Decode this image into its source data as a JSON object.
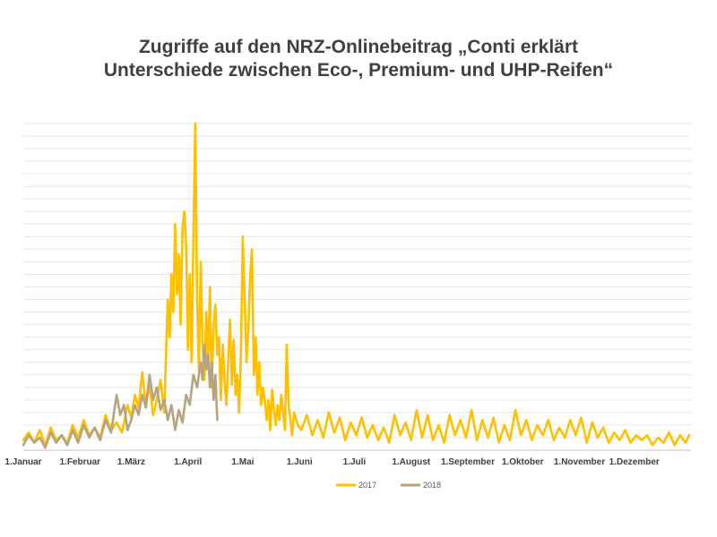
{
  "chart_data": {
    "type": "line",
    "title_line1": "Zugriffe auf den NRZ-Onlinebeitrag „Conti erklärt",
    "title_line2": "Unterschiede zwischen Eco-, Premium- und UHP-Reifen“",
    "xlabel": "",
    "ylabel": "",
    "ylim": [
      0,
      130
    ],
    "grid": true,
    "legend_position": "bottom-center",
    "months": [
      "1.Januar",
      "1.Februar",
      "1.März",
      "1.April",
      "1.Mai",
      "1.Juni",
      "1.Juli",
      "1.August",
      "1.September",
      "1.Oktober",
      "1.November",
      "1.Dezember"
    ],
    "month_start_days": [
      0,
      31,
      59,
      90,
      120,
      151,
      181,
      212,
      243,
      273,
      304,
      334
    ],
    "days_in_year": 365,
    "series": [
      {
        "name": "2017",
        "color": "#FFC000",
        "points": [
          [
            0,
            4
          ],
          [
            3,
            7
          ],
          [
            6,
            3
          ],
          [
            9,
            8
          ],
          [
            12,
            2
          ],
          [
            15,
            9
          ],
          [
            18,
            4
          ],
          [
            21,
            6
          ],
          [
            24,
            3
          ],
          [
            27,
            10
          ],
          [
            30,
            5
          ],
          [
            33,
            12
          ],
          [
            36,
            6
          ],
          [
            39,
            9
          ],
          [
            42,
            5
          ],
          [
            45,
            14
          ],
          [
            48,
            8
          ],
          [
            51,
            11
          ],
          [
            54,
            7
          ],
          [
            57,
            18
          ],
          [
            59,
            13
          ],
          [
            61,
            22
          ],
          [
            63,
            17
          ],
          [
            65,
            31
          ],
          [
            67,
            18
          ],
          [
            69,
            26
          ],
          [
            71,
            14
          ],
          [
            73,
            20
          ],
          [
            75,
            28
          ],
          [
            77,
            15
          ],
          [
            79,
            60
          ],
          [
            80,
            45
          ],
          [
            81,
            70
          ],
          [
            82,
            55
          ],
          [
            83,
            90
          ],
          [
            84,
            62
          ],
          [
            85,
            78
          ],
          [
            86,
            50
          ],
          [
            87,
            88
          ],
          [
            88,
            95
          ],
          [
            89,
            82
          ],
          [
            90,
            40
          ],
          [
            91,
            70
          ],
          [
            92,
            35
          ],
          [
            93,
            85
          ],
          [
            94,
            130
          ],
          [
            95,
            60
          ],
          [
            96,
            32
          ],
          [
            97,
            75
          ],
          [
            98,
            42
          ],
          [
            99,
            28
          ],
          [
            100,
            55
          ],
          [
            101,
            33
          ],
          [
            102,
            65
          ],
          [
            103,
            25
          ],
          [
            104,
            50
          ],
          [
            105,
            58
          ],
          [
            106,
            38
          ],
          [
            107,
            45
          ],
          [
            108,
            20
          ],
          [
            109,
            42
          ],
          [
            110,
            28
          ],
          [
            111,
            18
          ],
          [
            112,
            35
          ],
          [
            113,
            52
          ],
          [
            114,
            26
          ],
          [
            115,
            44
          ],
          [
            116,
            22
          ],
          [
            117,
            30
          ],
          [
            118,
            15
          ],
          [
            119,
            40
          ],
          [
            120,
            85
          ],
          [
            121,
            60
          ],
          [
            122,
            35
          ],
          [
            123,
            48
          ],
          [
            124,
            70
          ],
          [
            125,
            80
          ],
          [
            126,
            30
          ],
          [
            127,
            45
          ],
          [
            128,
            22
          ],
          [
            129,
            35
          ],
          [
            130,
            18
          ],
          [
            131,
            25
          ],
          [
            132,
            20
          ],
          [
            133,
            12
          ],
          [
            134,
            20
          ],
          [
            135,
            8
          ],
          [
            136,
            24
          ],
          [
            137,
            16
          ],
          [
            138,
            10
          ],
          [
            139,
            18
          ],
          [
            140,
            12
          ],
          [
            141,
            22
          ],
          [
            142,
            15
          ],
          [
            143,
            8
          ],
          [
            144,
            42
          ],
          [
            145,
            18
          ],
          [
            146,
            12
          ],
          [
            147,
            6
          ],
          [
            148,
            15
          ],
          [
            150,
            10
          ],
          [
            152,
            8
          ],
          [
            155,
            14
          ],
          [
            158,
            6
          ],
          [
            161,
            12
          ],
          [
            164,
            5
          ],
          [
            167,
            15
          ],
          [
            170,
            7
          ],
          [
            173,
            13
          ],
          [
            176,
            4
          ],
          [
            179,
            11
          ],
          [
            182,
            6
          ],
          [
            185,
            13
          ],
          [
            188,
            5
          ],
          [
            191,
            10
          ],
          [
            194,
            4
          ],
          [
            197,
            9
          ],
          [
            200,
            3
          ],
          [
            203,
            14
          ],
          [
            206,
            6
          ],
          [
            209,
            11
          ],
          [
            212,
            4
          ],
          [
            215,
            16
          ],
          [
            218,
            5
          ],
          [
            221,
            14
          ],
          [
            224,
            4
          ],
          [
            227,
            10
          ],
          [
            230,
            3
          ],
          [
            233,
            14
          ],
          [
            236,
            6
          ],
          [
            239,
            12
          ],
          [
            242,
            5
          ],
          [
            245,
            16
          ],
          [
            248,
            4
          ],
          [
            251,
            12
          ],
          [
            254,
            5
          ],
          [
            257,
            13
          ],
          [
            260,
            3
          ],
          [
            263,
            10
          ],
          [
            266,
            4
          ],
          [
            269,
            16
          ],
          [
            272,
            6
          ],
          [
            275,
            12
          ],
          [
            278,
            4
          ],
          [
            281,
            10
          ],
          [
            284,
            6
          ],
          [
            287,
            12
          ],
          [
            290,
            4
          ],
          [
            293,
            9
          ],
          [
            296,
            5
          ],
          [
            299,
            12
          ],
          [
            302,
            6
          ],
          [
            305,
            13
          ],
          [
            308,
            3
          ],
          [
            311,
            11
          ],
          [
            314,
            5
          ],
          [
            317,
            9
          ],
          [
            320,
            3
          ],
          [
            323,
            7
          ],
          [
            326,
            4
          ],
          [
            329,
            8
          ],
          [
            332,
            3
          ],
          [
            335,
            6
          ],
          [
            338,
            4
          ],
          [
            341,
            6
          ],
          [
            344,
            2
          ],
          [
            347,
            5
          ],
          [
            350,
            3
          ],
          [
            353,
            7
          ],
          [
            356,
            2
          ],
          [
            359,
            6
          ],
          [
            362,
            3
          ],
          [
            364,
            6
          ]
        ]
      },
      {
        "name": "2018",
        "color": "#B5A47F",
        "points": [
          [
            0,
            2
          ],
          [
            3,
            6
          ],
          [
            6,
            3
          ],
          [
            9,
            5
          ],
          [
            12,
            1
          ],
          [
            15,
            7
          ],
          [
            18,
            3
          ],
          [
            21,
            6
          ],
          [
            24,
            2
          ],
          [
            27,
            8
          ],
          [
            30,
            3
          ],
          [
            33,
            10
          ],
          [
            36,
            5
          ],
          [
            39,
            9
          ],
          [
            42,
            4
          ],
          [
            45,
            12
          ],
          [
            48,
            7
          ],
          [
            51,
            22
          ],
          [
            53,
            14
          ],
          [
            55,
            18
          ],
          [
            57,
            8
          ],
          [
            59,
            12
          ],
          [
            61,
            18
          ],
          [
            63,
            14
          ],
          [
            65,
            22
          ],
          [
            67,
            17
          ],
          [
            69,
            30
          ],
          [
            71,
            20
          ],
          [
            73,
            25
          ],
          [
            75,
            16
          ],
          [
            77,
            20
          ],
          [
            79,
            12
          ],
          [
            81,
            18
          ],
          [
            83,
            8
          ],
          [
            85,
            16
          ],
          [
            87,
            11
          ],
          [
            89,
            22
          ],
          [
            91,
            18
          ],
          [
            93,
            30
          ],
          [
            95,
            25
          ],
          [
            97,
            35
          ],
          [
            98,
            28
          ],
          [
            99,
            42
          ],
          [
            100,
            32
          ],
          [
            101,
            38
          ],
          [
            102,
            25
          ],
          [
            103,
            35
          ],
          [
            104,
            20
          ],
          [
            105,
            30
          ],
          [
            106,
            12
          ]
        ]
      }
    ]
  }
}
